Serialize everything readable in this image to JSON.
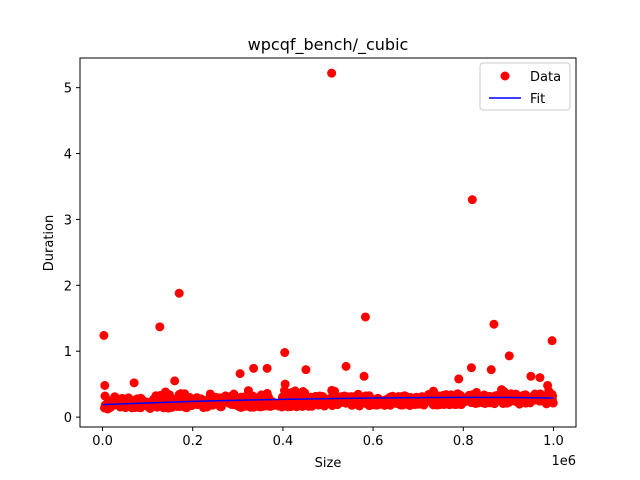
{
  "chart_data": {
    "type": "scatter",
    "title": "wpcqf_bench/_cubic",
    "xlabel": "Size",
    "ylabel": "Duration",
    "x_offset_label": "1e6",
    "xlim": [
      -50000,
      1050000
    ],
    "ylim": [
      -0.15,
      5.45
    ],
    "xticks": [
      0.0,
      200000,
      400000,
      600000,
      800000,
      1000000
    ],
    "xtick_labels": [
      "0.0",
      "0.2",
      "0.4",
      "0.6",
      "0.8",
      "1.0"
    ],
    "yticks": [
      0,
      1,
      2,
      3,
      4,
      5
    ],
    "ytick_labels": [
      "0",
      "1",
      "2",
      "3",
      "4",
      "5"
    ],
    "grid": false,
    "legend_position": "top-right",
    "series": [
      {
        "name": "Data",
        "kind": "scatter",
        "color": "#ff0000",
        "outliers": [
          {
            "x": 508000,
            "y": 5.22
          },
          {
            "x": 820000,
            "y": 3.3
          },
          {
            "x": 170000,
            "y": 1.88
          },
          {
            "x": 583000,
            "y": 1.52
          },
          {
            "x": 868000,
            "y": 1.41
          },
          {
            "x": 127000,
            "y": 1.37
          },
          {
            "x": 3000,
            "y": 1.24
          },
          {
            "x": 997000,
            "y": 1.16
          },
          {
            "x": 404000,
            "y": 0.98
          },
          {
            "x": 902000,
            "y": 0.93
          },
          {
            "x": 540000,
            "y": 0.77
          },
          {
            "x": 818000,
            "y": 0.75
          },
          {
            "x": 335000,
            "y": 0.74
          },
          {
            "x": 365000,
            "y": 0.74
          },
          {
            "x": 451000,
            "y": 0.72
          },
          {
            "x": 862000,
            "y": 0.72
          },
          {
            "x": 305000,
            "y": 0.66
          },
          {
            "x": 580000,
            "y": 0.62
          },
          {
            "x": 970000,
            "y": 0.6
          },
          {
            "x": 950000,
            "y": 0.62
          },
          {
            "x": 160000,
            "y": 0.55
          },
          {
            "x": 70000,
            "y": 0.52
          },
          {
            "x": 5000,
            "y": 0.48
          },
          {
            "x": 405000,
            "y": 0.5
          },
          {
            "x": 790000,
            "y": 0.58
          },
          {
            "x": 987000,
            "y": 0.48
          }
        ],
        "bulk": {
          "count": 700,
          "x_range": [
            0,
            1000000
          ],
          "y_band": [
            0.12,
            0.42
          ]
        }
      },
      {
        "name": "Fit",
        "kind": "line",
        "color": "#0000ff",
        "x": [
          0,
          100000,
          200000,
          300000,
          400000,
          500000,
          600000,
          700000,
          800000,
          900000,
          1000000
        ],
        "y": [
          0.19,
          0.215,
          0.238,
          0.256,
          0.27,
          0.281,
          0.29,
          0.296,
          0.299,
          0.298,
          0.29
        ]
      }
    ]
  }
}
